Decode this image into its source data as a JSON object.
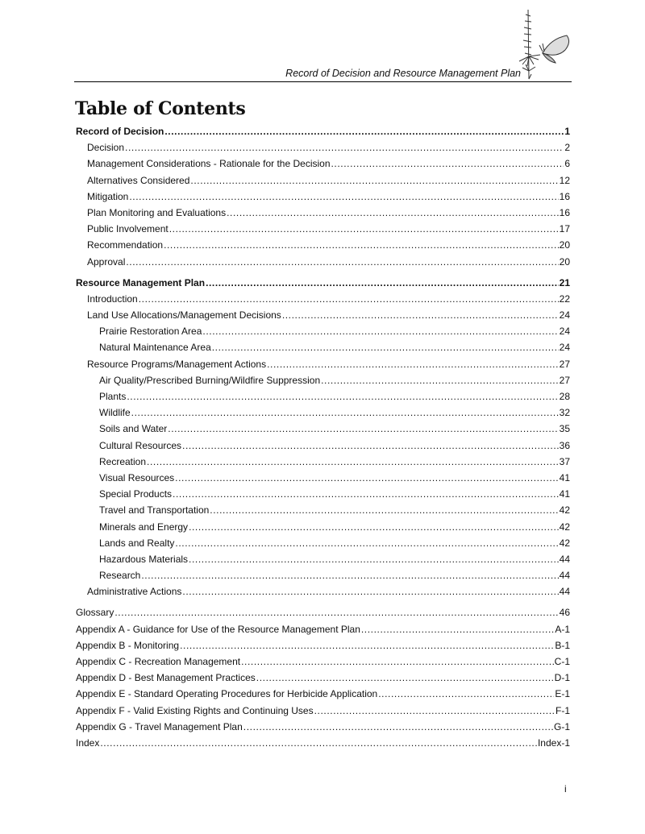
{
  "header": {
    "running_title": "Record of Decision and Resource Management Plan"
  },
  "title": "Table of Contents",
  "entries": [
    {
      "label": "Record of Decision",
      "page": "1",
      "level": 0,
      "bold": true
    },
    {
      "label": "Decision",
      "page": "2",
      "level": 1
    },
    {
      "label": "Management Considerations - Rationale for the Decision",
      "page": "6",
      "level": 1
    },
    {
      "label": "Alternatives Considered",
      "page": "12",
      "level": 1
    },
    {
      "label": "Mitigation",
      "page": "16",
      "level": 1
    },
    {
      "label": "Plan Monitoring and Evaluations",
      "page": "16",
      "level": 1
    },
    {
      "label": "Public Involvement",
      "page": "17",
      "level": 1
    },
    {
      "label": "Recommendation",
      "page": "20",
      "level": 1
    },
    {
      "label": "Approval",
      "page": "20",
      "level": 1
    },
    {
      "label": "Resource Management Plan",
      "page": "21",
      "level": 0,
      "bold": true,
      "gap": true
    },
    {
      "label": "Introduction",
      "page": "22",
      "level": 1
    },
    {
      "label": "Land Use Allocations/Management Decisions",
      "page": "24",
      "level": 1
    },
    {
      "label": "Prairie Restoration Area",
      "page": "24",
      "level": 2
    },
    {
      "label": "Natural Maintenance Area",
      "page": "24",
      "level": 2
    },
    {
      "label": "Resource Programs/Management Actions",
      "page": "27",
      "level": 1
    },
    {
      "label": "Air Quality/Prescribed Burning/Wildfire Suppression",
      "page": "27",
      "level": 2
    },
    {
      "label": "Plants",
      "page": "28",
      "level": 2
    },
    {
      "label": "Wildlife",
      "page": "32",
      "level": 2
    },
    {
      "label": "Soils and Water",
      "page": "35",
      "level": 2
    },
    {
      "label": "Cultural Resources",
      "page": "36",
      "level": 2
    },
    {
      "label": "Recreation",
      "page": "37",
      "level": 2
    },
    {
      "label": "Visual Resources",
      "page": "41",
      "level": 2
    },
    {
      "label": "Special Products",
      "page": "41",
      "level": 2
    },
    {
      "label": "Travel and Transportation",
      "page": "42",
      "level": 2
    },
    {
      "label": "Minerals and Energy",
      "page": "42",
      "level": 2
    },
    {
      "label": "Lands and Realty",
      "page": "42",
      "level": 2
    },
    {
      "label": "Hazardous Materials",
      "page": "44",
      "level": 2
    },
    {
      "label": "Research",
      "page": "44",
      "level": 2
    },
    {
      "label": "Administrative Actions",
      "page": "44",
      "level": 1
    },
    {
      "label": "Glossary",
      "page": "46",
      "level": 0,
      "gap": true
    },
    {
      "label": "Appendix A - Guidance for Use of the Resource Management Plan",
      "page": "A-1",
      "level": 0
    },
    {
      "label": "Appendix B - Monitoring",
      "page": "B-1",
      "level": 0
    },
    {
      "label": "Appendix C - Recreation Management",
      "page": "C-1",
      "level": 0
    },
    {
      "label": "Appendix D - Best Management Practices",
      "page": "D-1",
      "level": 0
    },
    {
      "label": "Appendix E - Standard Operating Procedures for Herbicide Application",
      "page": "E-1",
      "level": 0
    },
    {
      "label": "Appendix F - Valid Existing Rights and Continuing Uses",
      "page": "F-1",
      "level": 0
    },
    {
      "label": "Appendix G - Travel Management Plan",
      "page": "G-1",
      "level": 0
    },
    {
      "label": "Index",
      "page": "Index-1",
      "level": 0
    }
  ],
  "footer": {
    "page_number": "i"
  }
}
